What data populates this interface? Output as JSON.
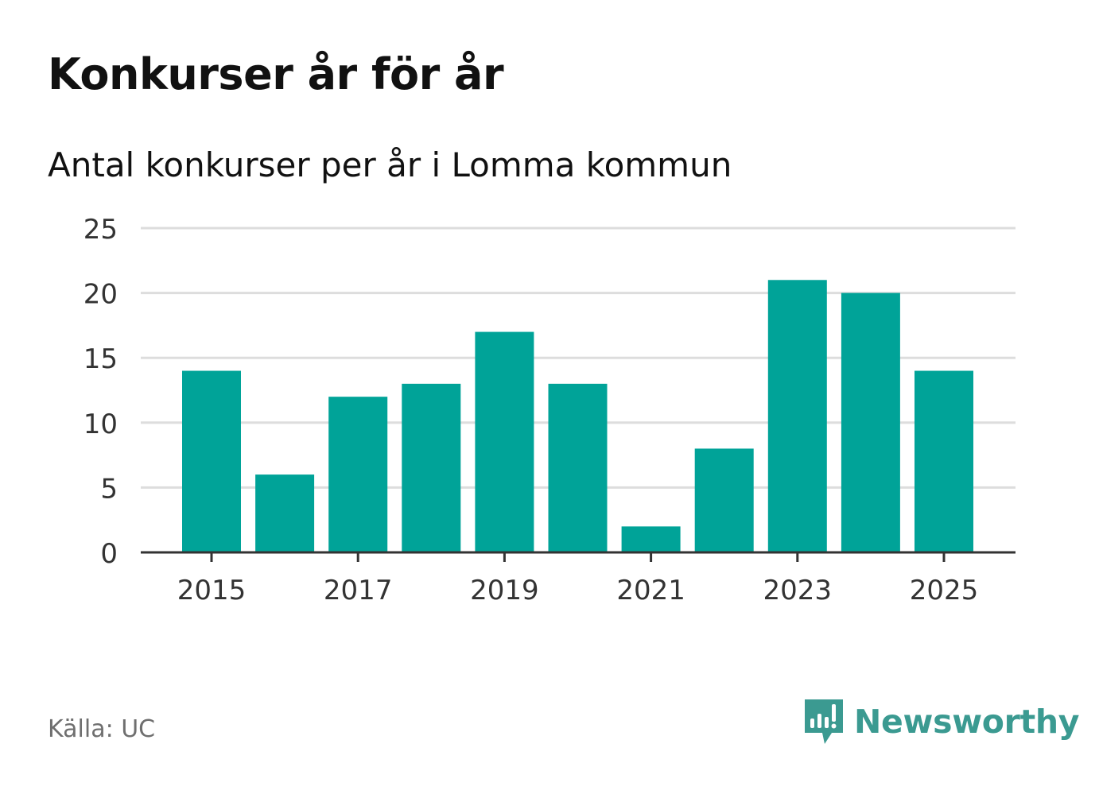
{
  "title": "Konkurser år för år",
  "subtitle": "Antal konkurser per år i Lomma kommun",
  "source": "Källa: UC",
  "brand": {
    "name": "Newsworthy",
    "icon": "newsworthy-logo-icon",
    "color": "#3b9a91"
  },
  "colors": {
    "bar": "#00a398",
    "grid": "#dddddd",
    "axis": "#333333",
    "text": "#333333"
  },
  "chart_data": {
    "type": "bar",
    "title": "Konkurser år för år",
    "subtitle": "Antal konkurser per år i Lomma kommun",
    "xlabel": "",
    "ylabel": "",
    "categories": [
      "2015",
      "2016",
      "2017",
      "2018",
      "2019",
      "2020",
      "2021",
      "2022",
      "2023",
      "2024",
      "2025"
    ],
    "values": [
      14,
      6,
      12,
      13,
      17,
      13,
      2,
      8,
      21,
      20,
      14
    ],
    "ylim": [
      0,
      25
    ],
    "yticks": [
      "0",
      "5",
      "10",
      "15",
      "20",
      "25"
    ],
    "xticks": [
      "2015",
      "2017",
      "2019",
      "2021",
      "2023",
      "2025"
    ],
    "grid": true
  }
}
